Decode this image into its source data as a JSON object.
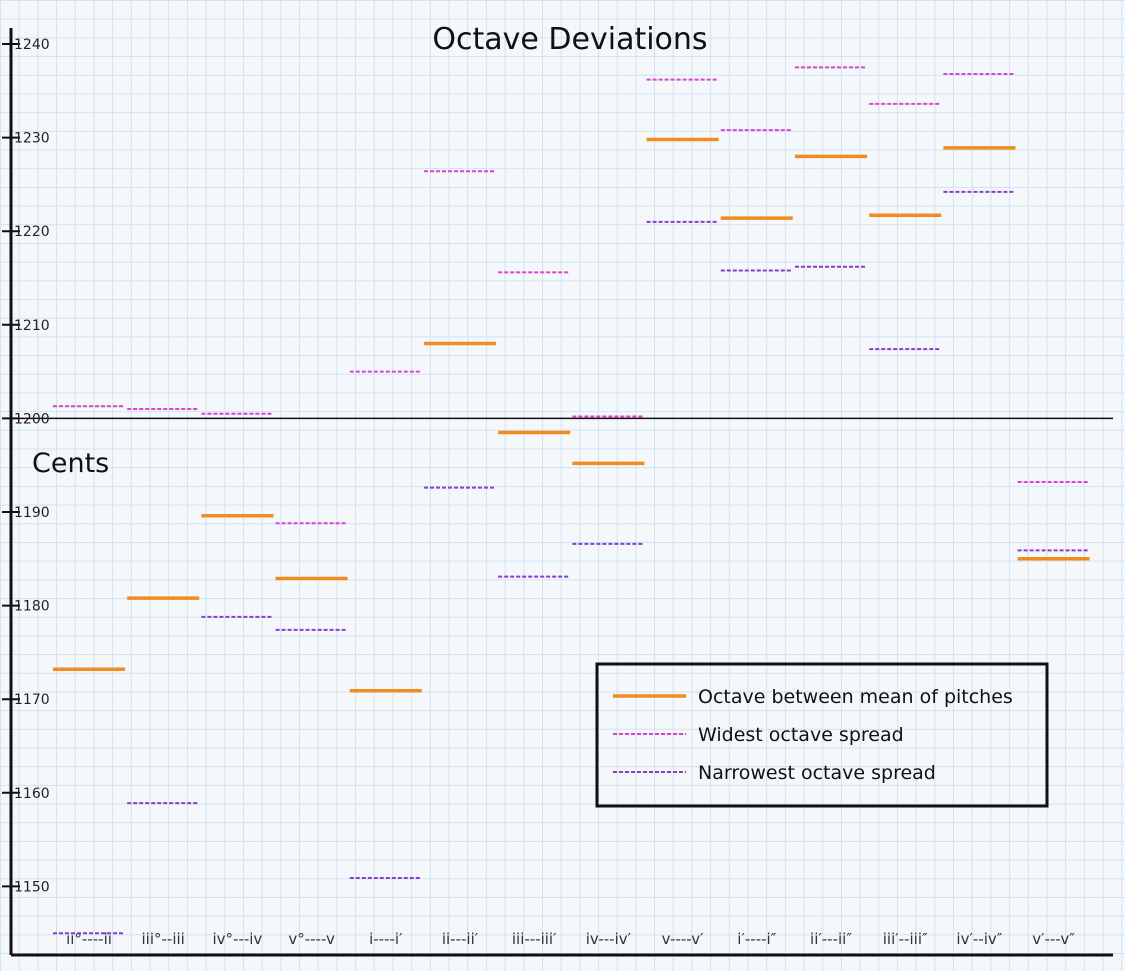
{
  "chart_data": {
    "type": "line",
    "title": "Octave Deviations",
    "ylabel": "Cents",
    "xlabel": "",
    "ylim": [
      1144,
      1243
    ],
    "yticks": [
      1150,
      1160,
      1170,
      1180,
      1190,
      1200,
      1210,
      1220,
      1230,
      1240
    ],
    "reference_line": 1200,
    "grid": true,
    "legend_placement": "bottom-right",
    "categories": [
      "ii°----ii",
      "iii°--iii",
      "iv°---iv",
      "v°----v",
      "i----i′",
      "ii---ii′",
      "iii---iii′",
      "iv---iv′",
      "v----v′",
      "i′----i″",
      "ii′---ii″",
      "iii′--iii″",
      "iv′--iv″",
      "v′---v″"
    ],
    "series": [
      {
        "name": "Octave between mean of pitches",
        "style": "solid",
        "color": "#f28c1e",
        "values": [
          1173.2,
          1180.8,
          1189.6,
          1182.9,
          1170.9,
          1208.0,
          1198.5,
          1195.2,
          1229.8,
          1221.4,
          1228.0,
          1221.7,
          1228.9,
          1185.0
        ]
      },
      {
        "name": "Widest octave spread",
        "style": "dashed",
        "color": "#e23fd6",
        "values": [
          1201.3,
          1201.0,
          1200.5,
          1188.8,
          1205.0,
          1226.4,
          1215.6,
          1200.2,
          1236.2,
          1230.8,
          1237.5,
          1233.6,
          1236.8,
          1193.2
        ]
      },
      {
        "name": "Narrowest octave spread",
        "style": "dashed",
        "color": "#8a3ad8",
        "values": [
          1145.0,
          1158.9,
          1178.8,
          1177.4,
          1150.9,
          1192.6,
          1183.1,
          1186.6,
          1221.0,
          1215.8,
          1216.2,
          1207.4,
          1224.2,
          1185.9
        ]
      }
    ]
  }
}
